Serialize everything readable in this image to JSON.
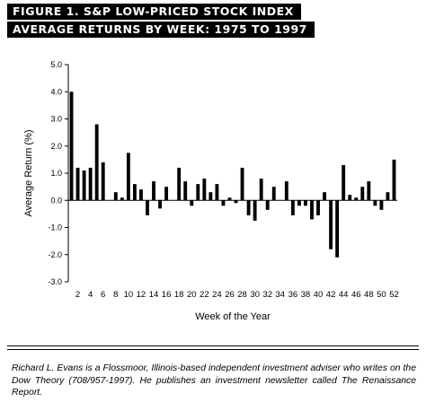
{
  "header": {
    "line1": "FIGURE  1. S&P LOW-PRICED STOCK INDEX",
    "line2": "AVERAGE RETURNS BY WEEK: 1975 TO 1997"
  },
  "chart_data": {
    "type": "bar",
    "title": "",
    "xlabel": "Week of the Year",
    "ylabel": "Average Return (%)",
    "ylim": [
      -3.0,
      5.0
    ],
    "yticks": [
      5.0,
      4.0,
      3.0,
      2.0,
      1.0,
      0.0,
      -1.0,
      -2.0,
      -3.0
    ],
    "ytick_labels": [
      "5.0",
      "4.0",
      "3.0",
      "2.0",
      "1.0",
      "0.0",
      "-1.0",
      "-2.0",
      "-3.0"
    ],
    "xtick_labels": [
      "2",
      "4",
      "6",
      "8",
      "10",
      "12",
      "14",
      "16",
      "18",
      "20",
      "22",
      "24",
      "26",
      "28",
      "30",
      "32",
      "34",
      "36",
      "38",
      "40",
      "42",
      "44",
      "46",
      "48",
      "50",
      "52"
    ],
    "weeks": [
      1,
      2,
      3,
      4,
      5,
      6,
      7,
      8,
      9,
      10,
      11,
      12,
      13,
      14,
      15,
      16,
      17,
      18,
      19,
      20,
      21,
      22,
      23,
      24,
      25,
      26,
      27,
      28,
      29,
      30,
      31,
      32,
      33,
      34,
      35,
      36,
      37,
      38,
      39,
      40,
      41,
      42,
      43,
      44,
      45,
      46,
      47,
      48,
      49,
      50,
      51,
      52
    ],
    "values": [
      4.0,
      1.2,
      1.1,
      1.2,
      2.8,
      1.4,
      0.0,
      0.3,
      0.1,
      1.75,
      0.6,
      0.4,
      -0.55,
      0.7,
      -0.3,
      0.5,
      0.0,
      1.2,
      0.7,
      -0.2,
      0.6,
      0.8,
      0.3,
      0.6,
      -0.2,
      0.1,
      -0.1,
      1.2,
      -0.55,
      -0.75,
      0.8,
      -0.35,
      0.5,
      0.0,
      0.7,
      -0.55,
      -0.2,
      -0.2,
      -0.7,
      -0.55,
      0.3,
      -1.8,
      -2.1,
      1.3,
      0.2,
      0.1,
      0.5,
      0.7,
      -0.2,
      -0.35,
      0.3,
      1.5
    ],
    "bar_color": "#000000",
    "grid": false,
    "legend": "none"
  },
  "caption": "Richard L. Evans is a Flossmoor, Illinois-based independent investment adviser who writes on the Dow Theory (708/957-1997). He publishes an investment newsletter called The Renaissance Report."
}
